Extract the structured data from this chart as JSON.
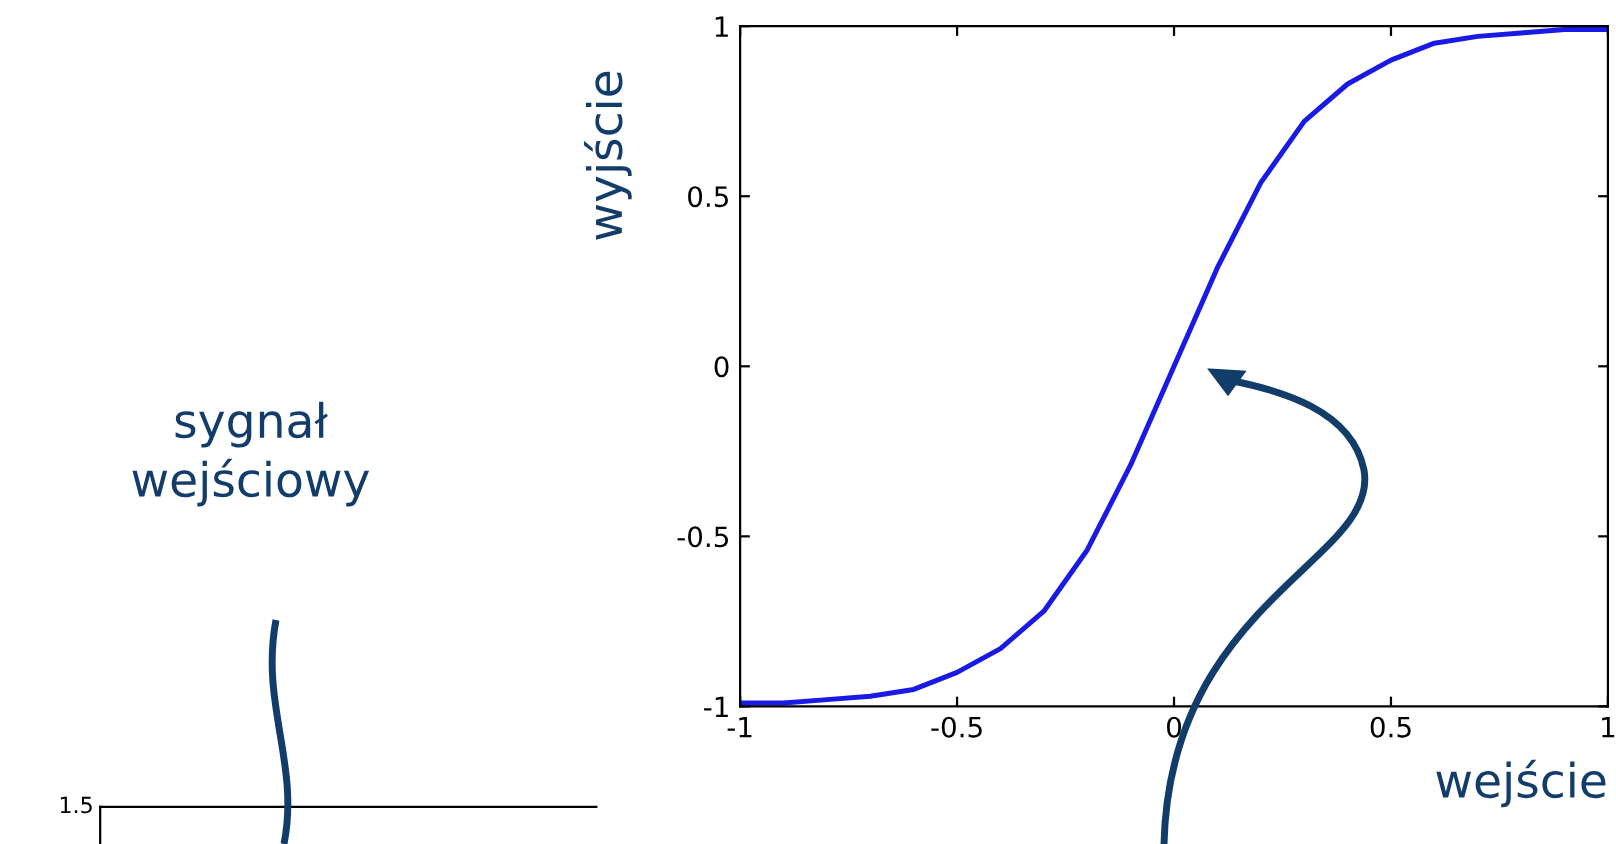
{
  "chart_data": [
    {
      "type": "line",
      "xlabel": "wejście",
      "ylabel": "wyjście",
      "xlim": [
        -1,
        1
      ],
      "ylim": [
        -1,
        1
      ],
      "xticks": [
        -1,
        -0.5,
        0,
        0.5,
        1
      ],
      "yticks": [
        -1,
        -0.5,
        0,
        0.5,
        1
      ],
      "grid": false,
      "legend": false,
      "marker": "none",
      "line_style": "solid",
      "x": [
        -1,
        -0.9,
        -0.8,
        -0.7,
        -0.6,
        -0.5,
        -0.4,
        -0.3,
        -0.2,
        -0.1,
        0,
        0.1,
        0.2,
        0.3,
        0.4,
        0.5,
        0.6,
        0.7,
        0.8,
        0.9,
        1.0
      ],
      "series": [
        {
          "color": "#1a1ae6",
          "values": [
            -0.99,
            -0.99,
            -0.98,
            -0.97,
            -0.95,
            -0.9,
            -0.83,
            -0.72,
            -0.54,
            -0.29,
            0,
            0.29,
            0.54,
            0.72,
            0.83,
            0.9,
            0.95,
            0.97,
            0.98,
            0.99,
            0.99
          ]
        }
      ]
    },
    {
      "type": "other",
      "annotations": [
        "1.5",
        "sygnał\nwejściowy"
      ]
    }
  ]
}
